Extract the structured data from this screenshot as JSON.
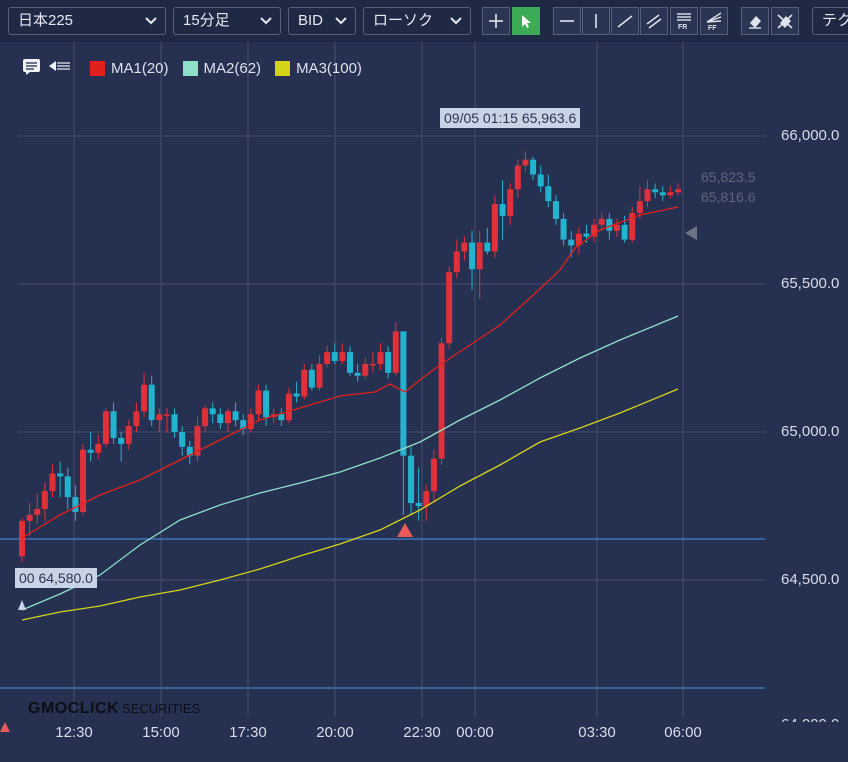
{
  "toolbar": {
    "symbol": "日本225",
    "timeframe": "15分足",
    "price_type": "BID",
    "chart_type": "ローソク",
    "technical": "テク"
  },
  "legend": [
    {
      "label": "MA1(20)",
      "color": "#e0201c"
    },
    {
      "label": "MA2(62)",
      "color": "#8fe0c9"
    },
    {
      "label": "MA3(100)",
      "color": "#d5d21a"
    }
  ],
  "y_axis": [
    "66,000.0",
    "65,500.0",
    "65,000.0",
    "64,500.0",
    "64,000.0"
  ],
  "x_axis": [
    "12:30",
    "15:00",
    "17:30",
    "20:00",
    "22:30",
    "00:00",
    "03:30",
    "06:00"
  ],
  "high_tooltip": "09/05 01:15 65,963.6",
  "low_tooltip": "00 64,580.0",
  "ask_price": "65,823.5",
  "bid_price": "65,816.6",
  "logo": {
    "brand": "GMOCLICK",
    "suffix": "SECURITIES"
  },
  "colors": {
    "background": "#263152",
    "up": "#e0303a",
    "down": "#22b3cf",
    "grid": "#46506a"
  },
  "chart_data": {
    "type": "candlestick",
    "title": "日本225 15分足 BID",
    "ylim": [
      64000,
      66100
    ],
    "series": [
      {
        "name": "MA1(20)",
        "values": [
          64680,
          64700,
          64720,
          64740,
          64760,
          64790,
          64820,
          64850,
          64880,
          64900,
          64920,
          64940,
          64960,
          64980,
          64990,
          65000,
          65000,
          65000,
          65010,
          65020,
          65040,
          65060,
          65080,
          65100,
          65110,
          65120,
          65130,
          65140,
          65150,
          65160,
          65170,
          65180,
          65190,
          65200,
          65210,
          65215,
          65220,
          65225,
          65230,
          65240,
          65250,
          65260,
          65270,
          65280,
          65290,
          65300,
          65320,
          65330,
          65340,
          65350,
          65360,
          65370,
          65380,
          65390,
          65400,
          65420,
          65450,
          65470,
          65490,
          65510,
          65530,
          65560,
          65590,
          65610,
          65630,
          65650,
          65670,
          65690,
          65710,
          65730,
          65740,
          65750,
          65760,
          65770,
          65780,
          65790,
          65800,
          65810,
          65820,
          65830,
          65840,
          65845,
          65850,
          65855,
          65860,
          65865,
          65866,
          65866,
          65866,
          65866,
          65866,
          65866,
          65866,
          65866,
          65866,
          65866,
          65866,
          65866,
          65866,
          65866,
          65866
        ]
      },
      {
        "name": "MA2(62)",
        "values": []
      },
      {
        "name": "MA3(100)",
        "values": []
      }
    ]
  }
}
